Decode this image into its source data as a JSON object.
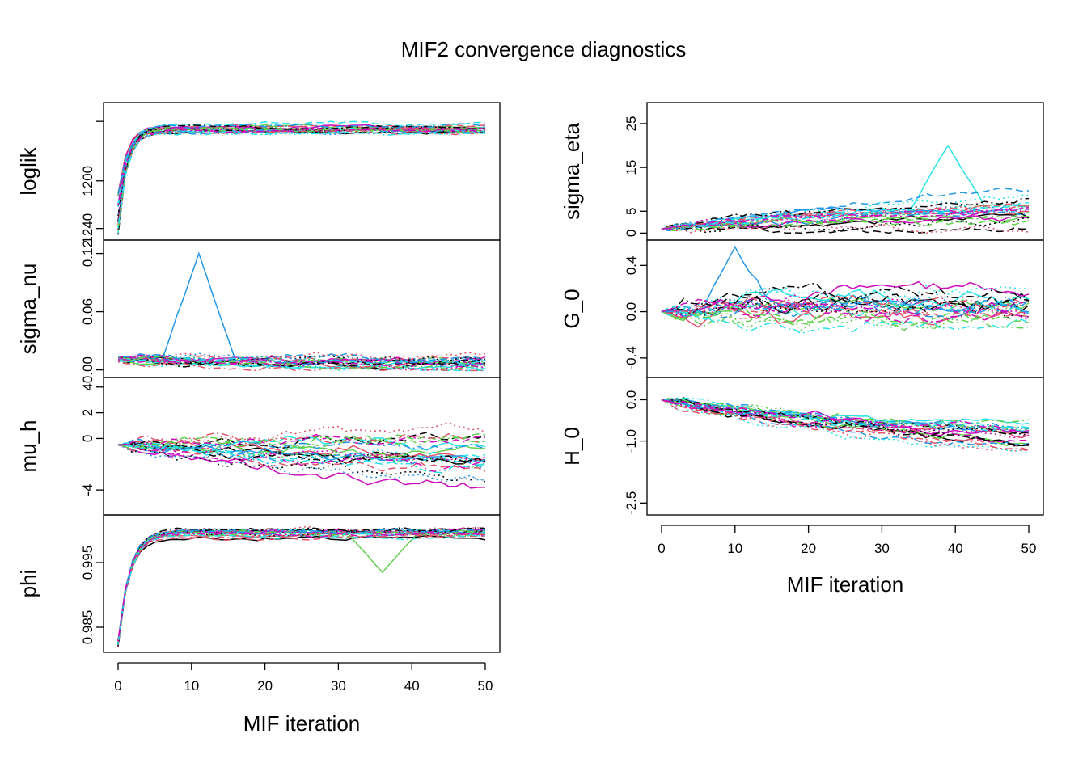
{
  "chart_data": {
    "type": "line",
    "title": "MIF2 convergence diagnostics",
    "x_label": "MIF iteration",
    "x_range": [
      0,
      50
    ],
    "x_ticks": [
      "0",
      "10",
      "20",
      "30",
      "40",
      "50"
    ],
    "series_colors": [
      "#000000",
      "#DF536B",
      "#61D04F",
      "#2297E6",
      "#28E2E5",
      "#CD0BBC"
    ],
    "line_styles": [
      "solid",
      "dashed",
      "dotted",
      "dotdash"
    ],
    "runs": 24,
    "iterations": 51,
    "panels": [
      {
        "id": "loglik",
        "column": 0,
        "row": 0,
        "ylabel": "loglik",
        "ylim": [
          1245,
          1139
        ],
        "yticks": [
          {
            "v": 1150,
            "label": ""
          },
          {
            "v": 1200,
            "label": "1200"
          },
          {
            "v": 1240,
            "label": "1240"
          }
        ],
        "start_range": [
          1210,
          1246
        ],
        "final_mean": 1157,
        "spread": 4,
        "wander": 2,
        "burn_in": 1.2,
        "spike": null
      },
      {
        "id": "sigma_nu",
        "column": 0,
        "row": 1,
        "ylabel": "sigma_nu",
        "ylim": [
          -0.002,
          0.128
        ],
        "yticks": [
          {
            "v": 0.0,
            "label": "0.00"
          },
          {
            "v": 0.06,
            "label": "0.06"
          },
          {
            "v": 0.12,
            "label": "0.12"
          }
        ],
        "start_range": [
          0.008,
          0.014
        ],
        "final_mean": 0.008,
        "spread": 0.007,
        "wander": 0.004,
        "burn_in": 20,
        "spike": {
          "run": 3,
          "at": 11,
          "height": 0.12
        }
      },
      {
        "id": "mu_h",
        "column": 0,
        "row": 2,
        "ylabel": "mu_h",
        "ylim": [
          -5.5,
          4.3
        ],
        "yticks": [
          {
            "v": -4,
            "label": "-4"
          },
          {
            "v": 0,
            "label": "0"
          },
          {
            "v": 2,
            "label": "2"
          },
          {
            "v": 4,
            "label": "4"
          }
        ],
        "start_range": [
          -0.5,
          -0.5
        ],
        "final_mean": -1.2,
        "spread": 2.3,
        "wander": 0.5,
        "burn_in": 30,
        "spike": null
      },
      {
        "id": "phi",
        "column": 0,
        "row": 3,
        "ylabel": "phi",
        "ylim": [
          0.982,
          1.0015
        ],
        "yticks": [
          {
            "v": 0.985,
            "label": "0.985"
          },
          {
            "v": 0.995,
            "label": "0.995"
          }
        ],
        "start_range": [
          0.982,
          0.983
        ],
        "final_mean": 0.9995,
        "spread": 0.0006,
        "wander": 0.0004,
        "burn_in": 1.5,
        "spike": {
          "run": 2,
          "at": 36,
          "height": 0.9935
        }
      },
      {
        "id": "sigma_eta",
        "column": 1,
        "row": 0,
        "ylabel": "sigma_eta",
        "ylim": [
          -0.3,
          28.5
        ],
        "yticks": [
          {
            "v": 0,
            "label": "0"
          },
          {
            "v": 5,
            "label": "5"
          },
          {
            "v": 15,
            "label": "15"
          },
          {
            "v": 25,
            "label": "25"
          }
        ],
        "start_range": [
          0.8,
          1.0
        ],
        "final_mean": 6,
        "spread": 4,
        "wander": 1.0,
        "burn_in": 30,
        "spike": {
          "run": 4,
          "at": 39,
          "height": 20
        }
      },
      {
        "id": "G_0",
        "column": 1,
        "row": 1,
        "ylabel": "G_0",
        "ylim": [
          -0.52,
          0.57
        ],
        "yticks": [
          {
            "v": -0.4,
            "label": "-0.4"
          },
          {
            "v": 0.0,
            "label": "0.0"
          },
          {
            "v": 0.4,
            "label": "0.4"
          }
        ],
        "start_range": [
          0.0,
          0.0
        ],
        "final_mean": 0.05,
        "spread": 0.12,
        "wander": 0.09,
        "burn_in": 8,
        "spike": {
          "run": 3,
          "at": 10,
          "height": 0.56
        }
      },
      {
        "id": "H_0",
        "column": 1,
        "row": 2,
        "ylabel": "H_0",
        "ylim": [
          -2.65,
          0.4
        ],
        "yticks": [
          {
            "v": -2.5,
            "label": "-2.5"
          },
          {
            "v": -1.0,
            "label": "-1.0"
          },
          {
            "v": 0.0,
            "label": "0.0"
          }
        ],
        "start_range": [
          0.0,
          0.0
        ],
        "final_mean": -1.3,
        "spread": 0.55,
        "wander": 0.12,
        "burn_in": 40,
        "spike": null
      }
    ]
  }
}
